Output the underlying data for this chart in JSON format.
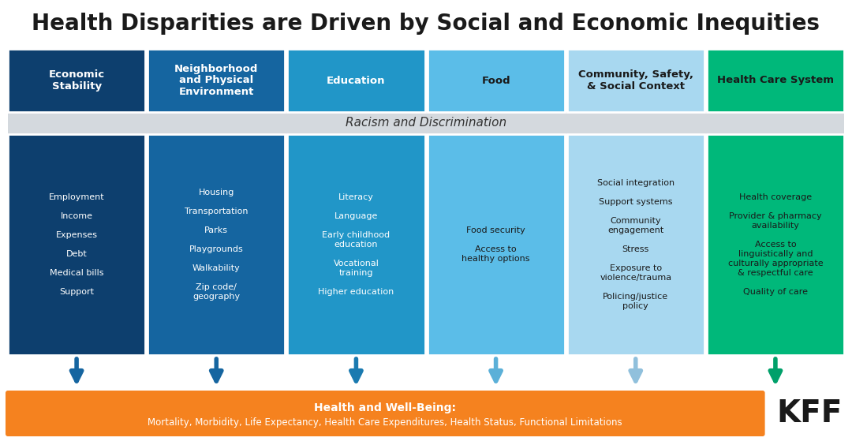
{
  "title": "Health Disparities are Driven by Social and Economic Inequities",
  "title_fontsize": 20,
  "bg_color": "#ffffff",
  "columns": [
    {
      "header": "Economic\nStability",
      "header_color": "#0d3f6e",
      "body_color": "#0d3f6e",
      "text_color_header": "#ffffff",
      "text_color_body": "#ffffff",
      "items": [
        "Employment",
        "Income",
        "Expenses",
        "Debt",
        "Medical bills",
        "Support"
      ],
      "arrow_color": "#1565a0"
    },
    {
      "header": "Neighborhood\nand Physical\nEnvironment",
      "header_color": "#1565a0",
      "body_color": "#1565a0",
      "text_color_header": "#ffffff",
      "text_color_body": "#ffffff",
      "items": [
        "Housing",
        "Transportation",
        "Parks",
        "Playgrounds",
        "Walkability",
        "Zip code/\ngeography"
      ],
      "arrow_color": "#1565a0"
    },
    {
      "header": "Education",
      "header_color": "#2196c8",
      "body_color": "#2196c8",
      "text_color_header": "#ffffff",
      "text_color_body": "#ffffff",
      "items": [
        "Literacy",
        "Language",
        "Early childhood\neducation",
        "Vocational\ntraining",
        "Higher education"
      ],
      "arrow_color": "#1a7ab0"
    },
    {
      "header": "Food",
      "header_color": "#5bbde8",
      "body_color": "#5bbde8",
      "text_color_header": "#1a1a1a",
      "text_color_body": "#1a1a1a",
      "items": [
        "Food security",
        "Access to\nhealthy options"
      ],
      "arrow_color": "#5bb0d8"
    },
    {
      "header": "Community, Safety,\n& Social Context",
      "header_color": "#a8d8f0",
      "body_color": "#a8d8f0",
      "text_color_header": "#1a1a1a",
      "text_color_body": "#1a1a1a",
      "items": [
        "Social integration",
        "Support systems",
        "Community\nengagement",
        "Stress",
        "Exposure to\nviolence/trauma",
        "Policing/justice\npolicy"
      ],
      "arrow_color": "#90c0dc"
    },
    {
      "header": "Health Care System",
      "header_color": "#00b87a",
      "body_color": "#00b87a",
      "text_color_header": "#1a1a1a",
      "text_color_body": "#1a1a1a",
      "items": [
        "Health coverage",
        "Provider & pharmacy\navailability",
        "Access to\nlinguistically and\nculturally appropriate\n& respectful care",
        "Quality of care"
      ],
      "arrow_color": "#00a06a"
    }
  ],
  "racism_band_color": "#d4d9de",
  "racism_text": "Racism and Discrimination",
  "racism_text_color": "#333333",
  "wellbeing_color": "#f5821f",
  "wellbeing_line1": "Health and Well-Being:",
  "wellbeing_line2": "Mortality, Morbidity, Life Expectancy, Health Care Expenditures, Health Status, Functional Limitations",
  "wellbeing_text_color": "#ffffff",
  "kff_text": "KFF",
  "kff_color": "#1a1a1a"
}
